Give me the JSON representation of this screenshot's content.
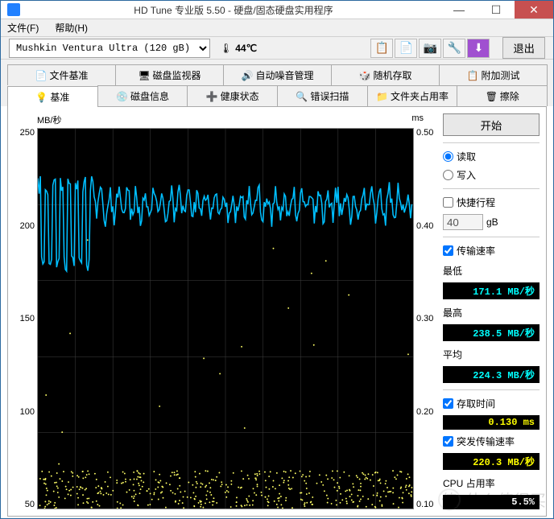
{
  "window": {
    "title": "HD Tune 专业版 5.50 - 硬盘/固态硬盘实用程序",
    "minimize": "—",
    "maximize": "☐",
    "close": "✕"
  },
  "menu": {
    "file": "文件(F)",
    "help": "帮助(H)"
  },
  "toolbar": {
    "drive": "Mushkin Ventura Ultra (120 gB)",
    "temp": "44℃",
    "exit": "退出"
  },
  "tabs_row1": [
    {
      "icon": "📄",
      "label": "文件基准"
    },
    {
      "icon": "🖥",
      "label": "磁盘监视器"
    },
    {
      "icon": "🔊",
      "label": "自动噪音管理"
    },
    {
      "icon": "🎲",
      "label": "随机存取"
    },
    {
      "icon": "📋",
      "label": "附加测试"
    }
  ],
  "tabs_row2": [
    {
      "icon": "💡",
      "label": "基准",
      "active": true
    },
    {
      "icon": "💿",
      "label": "磁盘信息"
    },
    {
      "icon": "➕",
      "label": "健康状态"
    },
    {
      "icon": "🔍",
      "label": "错误扫描"
    },
    {
      "icon": "📁",
      "label": "文件夹占用率"
    },
    {
      "icon": "🗑",
      "label": "擦除"
    }
  ],
  "chart": {
    "y_left_label": "MB/秒",
    "y_right_label": "ms",
    "y_left_ticks": [
      "250",
      "200",
      "150",
      "100",
      "50"
    ],
    "y_right_ticks": [
      "0.50",
      "0.40",
      "0.30",
      "0.20",
      "0.10"
    ],
    "line_color": "#00bfff",
    "scatter_color": "#ffff66",
    "grid_color": "#404040",
    "bg_color": "#000000",
    "speed_y_base": 210,
    "speed_osc_high": 215,
    "speed_osc_low": 175,
    "access_y_base": 0.1,
    "access_spread": 0.04
  },
  "side": {
    "start": "开始",
    "read": "读取",
    "write": "写入",
    "short_stroke": "快捷行程",
    "short_stroke_val": "40",
    "short_stroke_unit": "gB",
    "transfer_rate": "传输速率",
    "min_label": "最低",
    "min_val": "171.1 MB/秒",
    "max_label": "最高",
    "max_val": "238.5 MB/秒",
    "avg_label": "平均",
    "avg_val": "224.3 MB/秒",
    "access_label": "存取时间",
    "access_val": "0.130 ms",
    "burst_label": "突发传输速率",
    "burst_val": "220.3 MB/秒",
    "cpu_label": "CPU 占用率",
    "cpu_val": "5.5%"
  },
  "watermark": "值 什么值得买"
}
